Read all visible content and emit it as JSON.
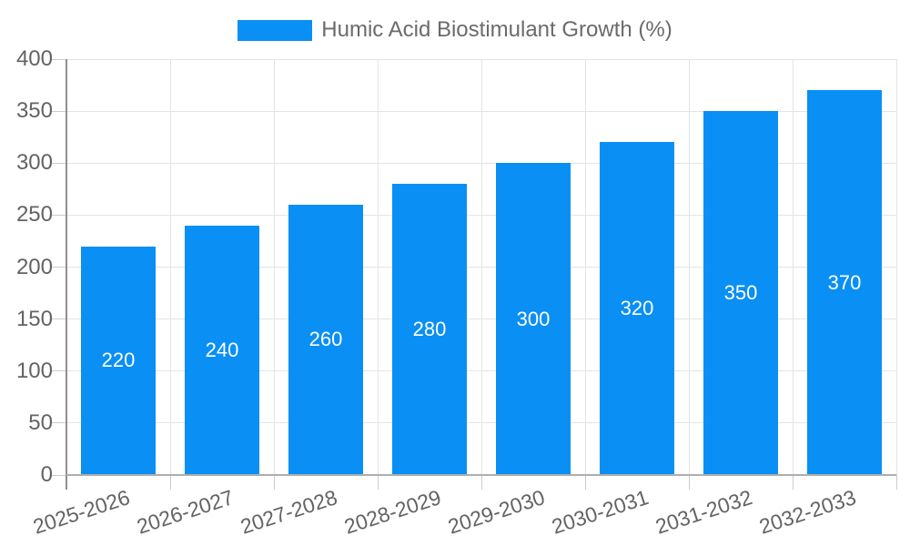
{
  "legend": {
    "label": "Humic Acid Biostimulant Growth (%)",
    "swatch_color": "#0A8FF4",
    "text_color": "#6b6b6b"
  },
  "chart_data": {
    "type": "bar",
    "title": "Humic Acid Biostimulant Growth (%)",
    "categories": [
      "2025-2026",
      "2026-2027",
      "2027-2028",
      "2028-2029",
      "2029-2030",
      "2030-2031",
      "2031-2032",
      "2032-2033"
    ],
    "values": [
      220,
      240,
      260,
      280,
      300,
      320,
      350,
      370
    ],
    "bar_data_labels": [
      "220",
      "240",
      "260",
      "280",
      "300",
      "320",
      "350",
      "370"
    ],
    "xlabel": "",
    "ylabel": "",
    "ylim": [
      0,
      400
    ],
    "yticks": [
      0,
      50,
      100,
      150,
      200,
      250,
      300,
      350,
      400
    ],
    "grid": true,
    "legend_position": "top-center",
    "x_label_rotation_deg": -18,
    "colors": {
      "bar": "#0A8FF4",
      "bar_label": "#ffffff",
      "axis_text": "#636363",
      "gridline": "#e4e4e4",
      "tick": "#cccccc",
      "y_axis_line": "#8f8f8f",
      "x_axis_line": "#aeaeae",
      "background": "#ffffff"
    }
  }
}
